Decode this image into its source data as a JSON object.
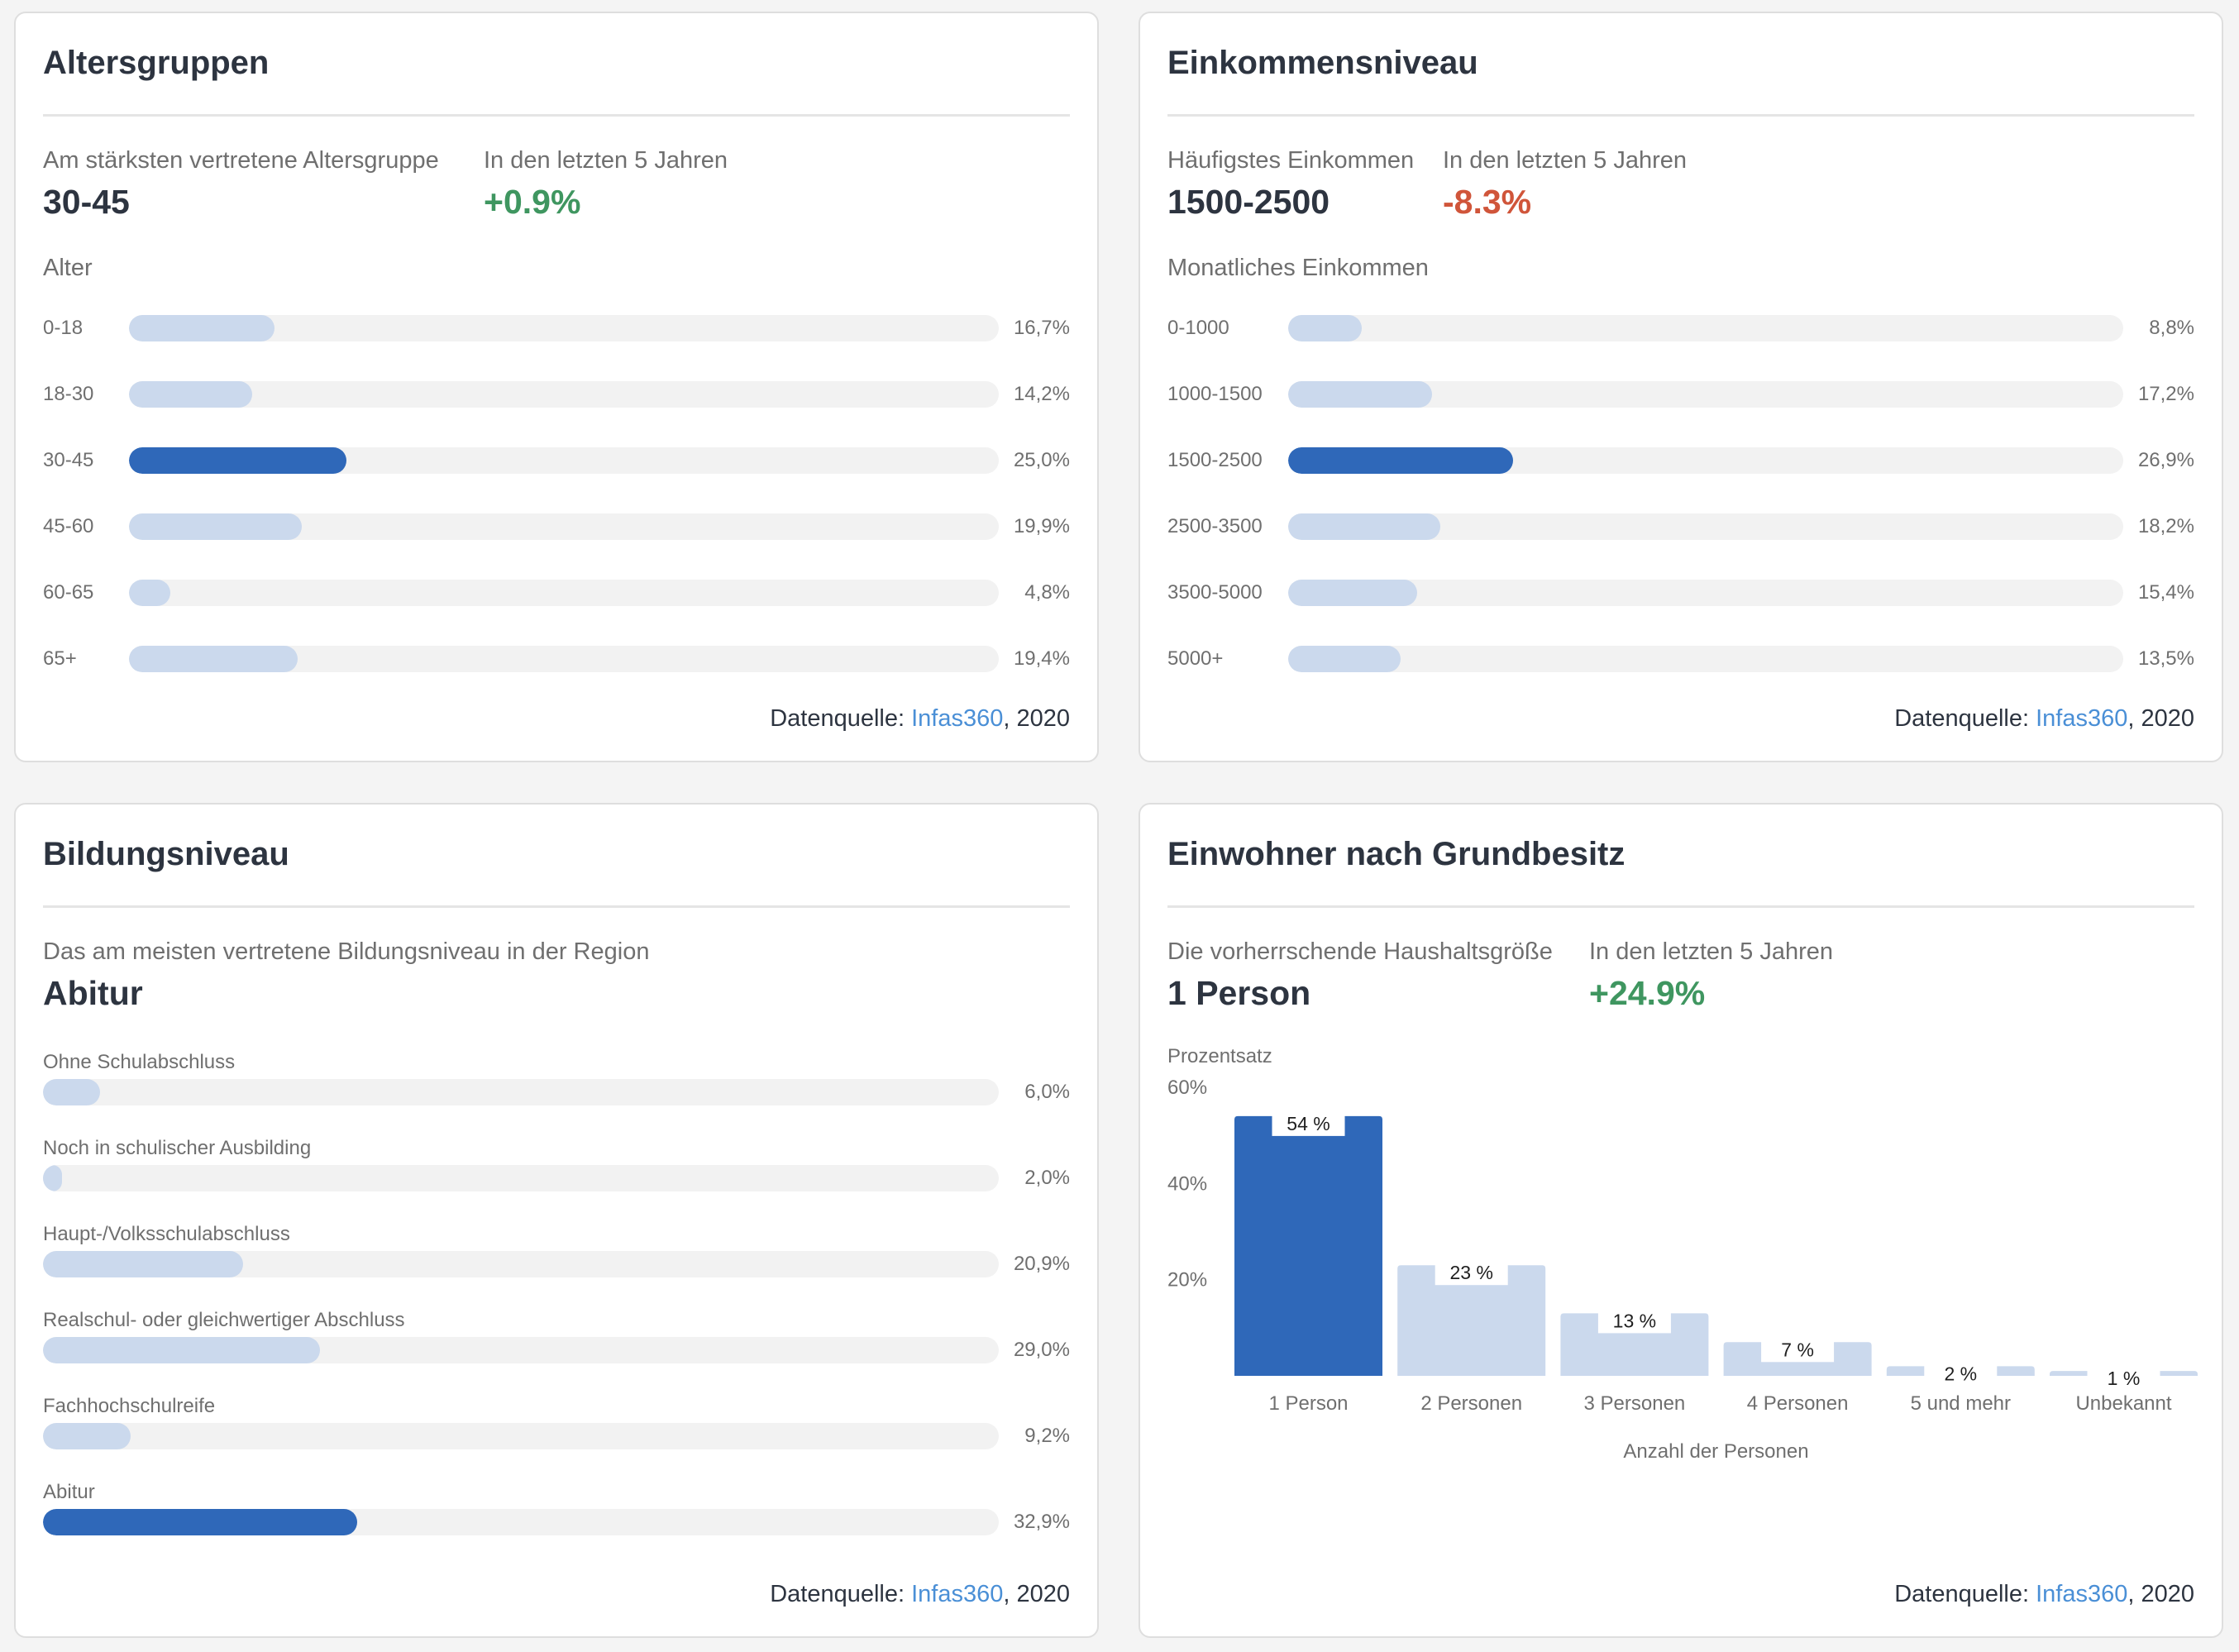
{
  "age": {
    "title": "Altersgruppen",
    "kpi1_label": "Am stärksten vertretene Altersgruppe",
    "kpi1_value": "30-45",
    "kpi2_label": "In den letzten 5 Jahren",
    "kpi2_value": "+0.9%",
    "section_label": "Alter",
    "rows": [
      {
        "label": "0-18",
        "value": "16,7%",
        "pct": 16.7,
        "highlight": false
      },
      {
        "label": "18-30",
        "value": "14,2%",
        "pct": 14.2,
        "highlight": false
      },
      {
        "label": "30-45",
        "value": "25,0%",
        "pct": 25.0,
        "highlight": true
      },
      {
        "label": "45-60",
        "value": "19,9%",
        "pct": 19.9,
        "highlight": false
      },
      {
        "label": "60-65",
        "value": "4,8%",
        "pct": 4.8,
        "highlight": false
      },
      {
        "label": "65+",
        "value": "19,4%",
        "pct": 19.4,
        "highlight": false
      }
    ],
    "source_prefix": "Datenquelle: ",
    "source_link": "Infas360",
    "source_suffix": ", 2020"
  },
  "income": {
    "title": "Einkommensniveau",
    "kpi1_label": "Häufigstes Einkommen",
    "kpi1_value": "1500-2500",
    "kpi2_label": "In den letzten 5 Jahren",
    "kpi2_value": "-8.3%",
    "section_label": "Monatliches Einkommen",
    "rows": [
      {
        "label": "0-1000",
        "value": "8,8%",
        "pct": 8.8,
        "highlight": false
      },
      {
        "label": "1000-1500",
        "value": "17,2%",
        "pct": 17.2,
        "highlight": false
      },
      {
        "label": "1500-2500",
        "value": "26,9%",
        "pct": 26.9,
        "highlight": true
      },
      {
        "label": "2500-3500",
        "value": "18,2%",
        "pct": 18.2,
        "highlight": false
      },
      {
        "label": "3500-5000",
        "value": "15,4%",
        "pct": 15.4,
        "highlight": false
      },
      {
        "label": "5000+",
        "value": "13,5%",
        "pct": 13.5,
        "highlight": false
      }
    ],
    "source_prefix": "Datenquelle: ",
    "source_link": "Infas360",
    "source_suffix": ", 2020"
  },
  "education": {
    "title": "Bildungsniveau",
    "kpi1_label": "Das am meisten vertretene Bildungsniveau in der Region",
    "kpi1_value": "Abitur",
    "rows": [
      {
        "label": "Ohne Schulabschluss",
        "value": "6,0%",
        "pct": 6.0,
        "highlight": false
      },
      {
        "label": "Noch in schulischer Ausbilding",
        "value": "2,0%",
        "pct": 2.0,
        "highlight": false
      },
      {
        "label": "Haupt-/Volksschulabschluss",
        "value": "20,9%",
        "pct": 20.9,
        "highlight": false
      },
      {
        "label": "Realschul- oder gleichwertiger Abschluss",
        "value": "29,0%",
        "pct": 29.0,
        "highlight": false
      },
      {
        "label": "Fachhochschulreife",
        "value": "9,2%",
        "pct": 9.2,
        "highlight": false
      },
      {
        "label": "Abitur",
        "value": "32,9%",
        "pct": 32.9,
        "highlight": true
      }
    ],
    "source_prefix": "Datenquelle: ",
    "source_link": "Infas360",
    "source_suffix": ", 2020"
  },
  "household": {
    "title": "Einwohner nach Grundbesitz",
    "kpi1_label": "Die vorherrschende Haushaltsgröße",
    "kpi1_value": "1 Person",
    "kpi2_label": "In den letzten 5 Jahren",
    "kpi2_value": "+24.9%",
    "source_prefix": "Datenquelle: ",
    "source_link": "Infas360",
    "source_suffix": ", 2020"
  },
  "colors": {
    "bar_default": "#cbd9ed",
    "bar_highlight": "#2f68b9",
    "track": "#f2f2f2",
    "positive": "#3f9660",
    "negative": "#d0553a",
    "link": "#4a8fd6"
  },
  "chart_data": [
    {
      "type": "bar",
      "orientation": "horizontal",
      "title": "Altersgruppen",
      "ylabel": "Alter",
      "categories": [
        "0-18",
        "18-30",
        "30-45",
        "45-60",
        "60-65",
        "65+"
      ],
      "values": [
        16.7,
        14.2,
        25.0,
        19.9,
        4.8,
        19.4
      ],
      "unit": "%",
      "xlim": [
        0,
        100
      ],
      "highlight": "30-45"
    },
    {
      "type": "bar",
      "orientation": "horizontal",
      "title": "Einkommensniveau",
      "ylabel": "Monatliches Einkommen",
      "categories": [
        "0-1000",
        "1000-1500",
        "1500-2500",
        "2500-3500",
        "3500-5000",
        "5000+"
      ],
      "values": [
        8.8,
        17.2,
        26.9,
        18.2,
        15.4,
        13.5
      ],
      "unit": "%",
      "xlim": [
        0,
        100
      ],
      "highlight": "1500-2500"
    },
    {
      "type": "bar",
      "orientation": "horizontal",
      "title": "Bildungsniveau",
      "categories": [
        "Ohne Schulabschluss",
        "Noch in schulischer Ausbilding",
        "Haupt-/Volksschulabschluss",
        "Realschul- oder gleichwertiger Abschluss",
        "Fachhochschulreife",
        "Abitur"
      ],
      "values": [
        6.0,
        2.0,
        20.9,
        29.0,
        9.2,
        32.9
      ],
      "unit": "%",
      "xlim": [
        0,
        100
      ],
      "highlight": "Abitur"
    },
    {
      "type": "bar",
      "orientation": "vertical",
      "title": "Einwohner nach Grundbesitz",
      "xlabel": "Anzahl der Personen",
      "ylabel": "Prozentsatz",
      "categories": [
        "1 Person",
        "2 Personen",
        "3 Personen",
        "4 Personen",
        "5 und mehr",
        "Unbekannt"
      ],
      "values": [
        54,
        23,
        13,
        7,
        2,
        1
      ],
      "data_labels": [
        "54 %",
        "23 %",
        "13 %",
        "7 %",
        "2 %",
        "1 %"
      ],
      "yticks": [
        20,
        40,
        60
      ],
      "ytick_labels": [
        "20%",
        "40%",
        "60%"
      ],
      "ylim": [
        0,
        60
      ],
      "highlight": "1 Person"
    }
  ]
}
